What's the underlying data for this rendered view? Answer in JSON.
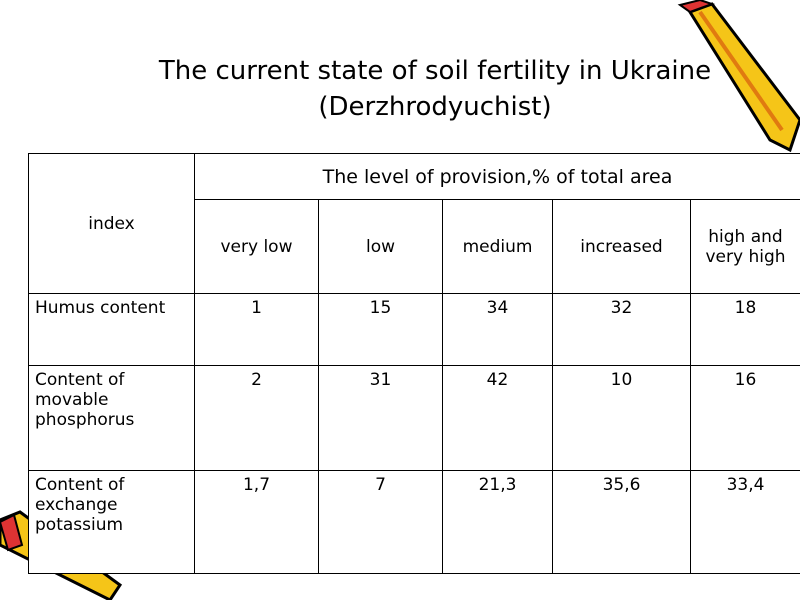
{
  "title": [
    "The current state of soil fertility in Ukraine",
    "(Derzhrodyuchist)"
  ],
  "table": {
    "header": {
      "index": "index",
      "group": "The level of provision,% of total area",
      "levels": [
        "very low",
        "low",
        "medium",
        "increased",
        "high and very high"
      ]
    },
    "rows": [
      [
        "Humus content",
        "1",
        "15",
        "34",
        "32",
        "18"
      ],
      [
        "Content of movable phosphorus",
        "2",
        "31",
        "42",
        "10",
        "16"
      ],
      [
        "Content of exchange potassium",
        "1,7",
        "7",
        "21,3",
        "35,6",
        "33,4"
      ]
    ]
  }
}
